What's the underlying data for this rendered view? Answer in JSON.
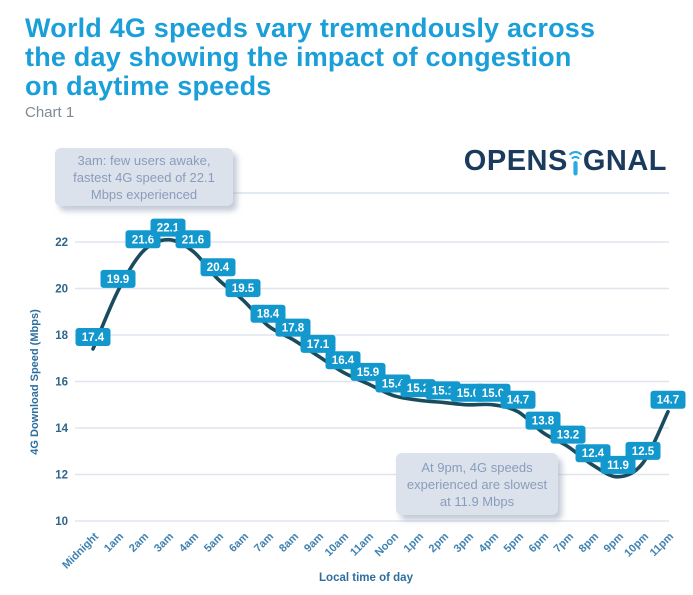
{
  "page": {
    "title_lines": {
      "l1": "World 4G speeds vary tremendously across",
      "l2": "the day showing the impact of congestion",
      "l3": "on daytime speeds"
    },
    "subtitle": "Chart 1",
    "logo": {
      "name": "OPENSIGNAL",
      "prefix": "OPENS",
      "suffix": "GNAL"
    }
  },
  "annotations": {
    "peak": {
      "l1": "3am: few users awake,",
      "l2": "fastest 4G speed of 22.1",
      "l3": "Mbps experienced"
    },
    "trough": {
      "l1": "At 9pm, 4G speeds",
      "l2": "experienced are slowest",
      "l3": "at 11.9 Mbps"
    }
  },
  "chart_data": {
    "type": "line",
    "title": "",
    "categories": [
      "Midnight",
      "1am",
      "2am",
      "3am",
      "4am",
      "5am",
      "6am",
      "7am",
      "8am",
      "9am",
      "10am",
      "11am",
      "Noon",
      "1pm",
      "2pm",
      "3pm",
      "4pm",
      "5pm",
      "6pm",
      "7pm",
      "8pm",
      "9pm",
      "10pm",
      "11pm"
    ],
    "values": [
      17.4,
      19.9,
      21.6,
      22.1,
      21.6,
      20.4,
      19.5,
      18.4,
      17.8,
      17.1,
      16.4,
      15.9,
      15.4,
      15.2,
      15.1,
      15.0,
      15.0,
      14.7,
      13.8,
      13.2,
      12.4,
      11.9,
      12.5,
      14.7
    ],
    "xlabel": "Local time of day",
    "ylabel": "4G Download Speed (Mbps)",
    "ylim": [
      10,
      22
    ],
    "yticks": [
      10,
      12,
      14,
      16,
      18,
      20,
      22
    ],
    "grid": true,
    "legend": false,
    "data_labels": true
  },
  "colors": {
    "title_blue": "#1A9FD9",
    "subtitle_gray": "#7D8B9A",
    "logo_navy": "#1B3B5E",
    "logo_signal_blue": "#2CA9E1",
    "line": "#1A4C5E",
    "label_bg": "#1398CE",
    "label_text": "#FFFFFF",
    "grid": "#DFE6ED",
    "y_tick": "#2E6588",
    "x_tick": "#3F81B0",
    "axis_title": "#2C6F9E",
    "annotation_bg": "#DBE2EC",
    "annotation_text": "#8A9CBC"
  }
}
